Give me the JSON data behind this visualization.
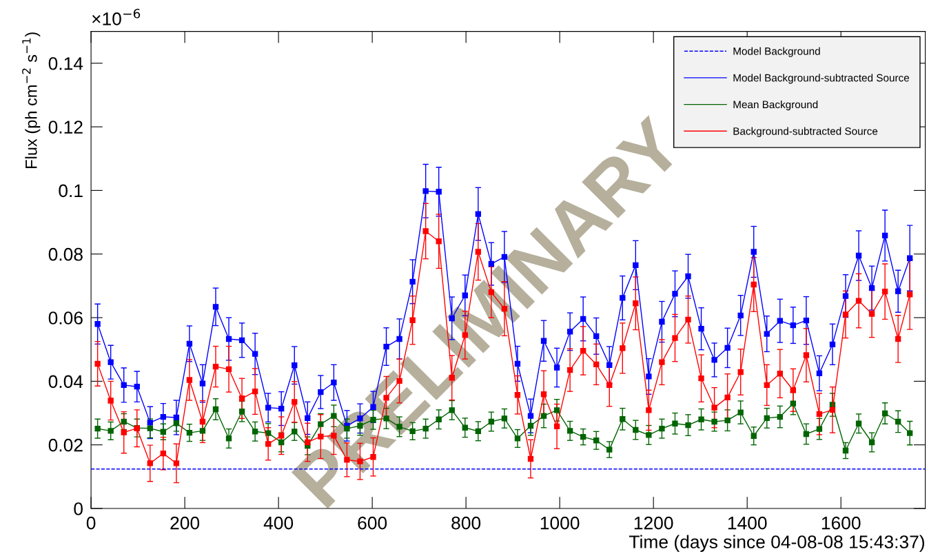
{
  "chart_data": {
    "type": "line",
    "xlabel": "Time (days since 04-08-08 15:43:37)",
    "ylabel": "Flux (ph cm$^{−2}$ s$^{−1}$)",
    "annotations": [
      "×10$^{−6}$",
      "PRELIMINARY"
    ],
    "x": [
      14,
      42,
      70,
      98,
      126,
      154,
      182,
      210,
      238,
      266,
      294,
      322,
      350,
      378,
      406,
      434,
      462,
      490,
      518,
      546,
      574,
      602,
      630,
      658,
      686,
      714,
      742,
      770,
      798,
      826,
      854,
      882,
      910,
      938,
      966,
      994,
      1022,
      1050,
      1078,
      1106,
      1134,
      1162,
      1190,
      1218,
      1246,
      1274,
      1302,
      1330,
      1358,
      1386,
      1414,
      1442,
      1470,
      1498,
      1526,
      1554,
      1582,
      1610,
      1638,
      1666,
      1694,
      1722,
      1747
    ],
    "xlim": [
      0,
      1780
    ],
    "xticks": [
      0,
      200,
      400,
      600,
      800,
      1000,
      1200,
      1400,
      1600
    ],
    "ylim": [
      0,
      0.15
    ],
    "yticks": [
      0,
      0.02,
      0.04,
      0.06,
      0.08,
      {
        "value": 0.1,
        "label": "0.1"
      },
      0.12,
      0.14
    ],
    "marker": "square",
    "line_style": "solid",
    "legend": "top right",
    "series": [
      {
        "name": "Model Background",
        "color": "#0000ff",
        "marker": "none",
        "line_style": "dashed",
        "x": [
          0,
          1780
        ],
        "values": [
          0.0124,
          0.0124
        ]
      },
      {
        "name": "Model Background-subtracted Source",
        "color": "#0000ff",
        "values": [
          0.058,
          0.046,
          0.0388,
          0.0383,
          0.027,
          0.0288,
          0.0286,
          0.0518,
          0.0393,
          0.0634,
          0.0533,
          0.0529,
          0.0486,
          0.0317,
          0.0314,
          0.045,
          0.0284,
          0.0366,
          0.0396,
          0.026,
          0.0283,
          0.0319,
          0.0509,
          0.0533,
          0.0713,
          0.0998,
          0.0996,
          0.0598,
          0.067,
          0.0926,
          0.0769,
          0.0791,
          0.0455,
          0.0291,
          0.0527,
          0.0443,
          0.0556,
          0.0596,
          0.0542,
          0.0451,
          0.0662,
          0.0765,
          0.0415,
          0.0587,
          0.0675,
          0.073,
          0.0565,
          0.0467,
          0.0505,
          0.0607,
          0.0807,
          0.0549,
          0.059,
          0.0576,
          0.0591,
          0.0425,
          0.0516,
          0.0668,
          0.0795,
          0.0693,
          0.0858,
          0.0683,
          0.0787
        ],
        "errors": [
          0.0063,
          0.0053,
          0.0054,
          0.0048,
          0.005,
          0.0042,
          0.0054,
          0.0056,
          0.0059,
          0.0059,
          0.0067,
          0.0054,
          0.0065,
          0.0045,
          0.0053,
          0.0059,
          0.0051,
          0.0052,
          0.0056,
          0.0048,
          0.0046,
          0.0049,
          0.0059,
          0.0063,
          0.0069,
          0.0084,
          0.0077,
          0.0067,
          0.0064,
          0.0083,
          0.0067,
          0.008,
          0.0055,
          0.0053,
          0.0064,
          0.0061,
          0.0059,
          0.0069,
          0.0057,
          0.0058,
          0.0069,
          0.0077,
          0.0056,
          0.0064,
          0.0072,
          0.0069,
          0.0066,
          0.0053,
          0.0062,
          0.0063,
          0.008,
          0.0056,
          0.0068,
          0.0057,
          0.0075,
          0.0055,
          0.0064,
          0.0067,
          0.0078,
          0.0069,
          0.008,
          0.0066,
          0.0103
        ]
      },
      {
        "name": "Mean Background",
        "color": "#006400",
        "values": [
          0.0251,
          0.0244,
          0.0273,
          0.0253,
          0.0252,
          0.0241,
          0.0268,
          0.0238,
          0.0244,
          0.0312,
          0.022,
          0.0305,
          0.0242,
          0.0237,
          0.0208,
          0.0242,
          0.0197,
          0.0265,
          0.0291,
          0.0251,
          0.026,
          0.0279,
          0.0283,
          0.0257,
          0.0243,
          0.0251,
          0.028,
          0.0309,
          0.0254,
          0.0243,
          0.0273,
          0.0283,
          0.022,
          0.026,
          0.0291,
          0.0309,
          0.0244,
          0.0225,
          0.0214,
          0.0185,
          0.0281,
          0.0247,
          0.0231,
          0.0251,
          0.0267,
          0.0262,
          0.028,
          0.0273,
          0.0277,
          0.0302,
          0.0228,
          0.0284,
          0.0288,
          0.033,
          0.0234,
          0.025,
          0.0326,
          0.0182,
          0.0267,
          0.0208,
          0.0299,
          0.0273,
          0.0237
        ],
        "errors": [
          0.003,
          0.0028,
          0.0025,
          0.0028,
          0.003,
          0.0025,
          0.0025,
          0.0027,
          0.003,
          0.0033,
          0.003,
          0.0032,
          0.003,
          0.003,
          0.003,
          0.0028,
          0.0028,
          0.0033,
          0.0034,
          0.003,
          0.003,
          0.003,
          0.0032,
          0.0031,
          0.0027,
          0.003,
          0.003,
          0.003,
          0.003,
          0.003,
          0.003,
          0.003,
          0.0028,
          0.003,
          0.0037,
          0.0034,
          0.003,
          0.0025,
          0.0028,
          0.0025,
          0.0034,
          0.003,
          0.003,
          0.003,
          0.0033,
          0.0033,
          0.0033,
          0.003,
          0.0033,
          0.0036,
          0.0028,
          0.0031,
          0.0034,
          0.0035,
          0.0032,
          0.0033,
          0.0036,
          0.0025,
          0.003,
          0.003,
          0.0033,
          0.0034,
          0.0037
        ]
      },
      {
        "name": "Background-subtracted Source",
        "color": "#ff0000",
        "values": [
          0.0455,
          0.0339,
          0.0239,
          0.0252,
          0.0142,
          0.0173,
          0.0142,
          0.0404,
          0.0273,
          0.0446,
          0.0438,
          0.0346,
          0.0368,
          0.0203,
          0.0229,
          0.0335,
          0.0208,
          0.0226,
          0.0229,
          0.0153,
          0.0148,
          0.0162,
          0.0348,
          0.0401,
          0.0592,
          0.0872,
          0.084,
          0.0411,
          0.0545,
          0.0807,
          0.068,
          0.0628,
          0.0357,
          0.0156,
          0.0359,
          0.0258,
          0.0435,
          0.0496,
          0.0453,
          0.0388,
          0.0504,
          0.0645,
          0.0309,
          0.046,
          0.0536,
          0.0594,
          0.0409,
          0.0317,
          0.0349,
          0.0429,
          0.0704,
          0.0388,
          0.0424,
          0.0372,
          0.0482,
          0.0297,
          0.031,
          0.061,
          0.0653,
          0.0612,
          0.0682,
          0.0533,
          0.0673
        ],
        "errors": [
          0.007,
          0.0061,
          0.0065,
          0.0058,
          0.0057,
          0.0051,
          0.0061,
          0.0064,
          0.0066,
          0.0064,
          0.0072,
          0.0063,
          0.0072,
          0.0051,
          0.0059,
          0.0064,
          0.006,
          0.0069,
          0.0059,
          0.0053,
          0.0057,
          0.006,
          0.0067,
          0.0069,
          0.0076,
          0.0087,
          0.0085,
          0.007,
          0.0075,
          0.0089,
          0.008,
          0.0085,
          0.006,
          0.006,
          0.0074,
          0.007,
          0.0067,
          0.0076,
          0.0064,
          0.0067,
          0.0079,
          0.0083,
          0.0063,
          0.0071,
          0.0074,
          0.0074,
          0.0074,
          0.0063,
          0.0074,
          0.0072,
          0.0085,
          0.0064,
          0.0076,
          0.0067,
          0.0084,
          0.0065,
          0.0072,
          0.0074,
          0.0085,
          0.0074,
          0.0087,
          0.0074,
          0.011
        ]
      }
    ]
  }
}
